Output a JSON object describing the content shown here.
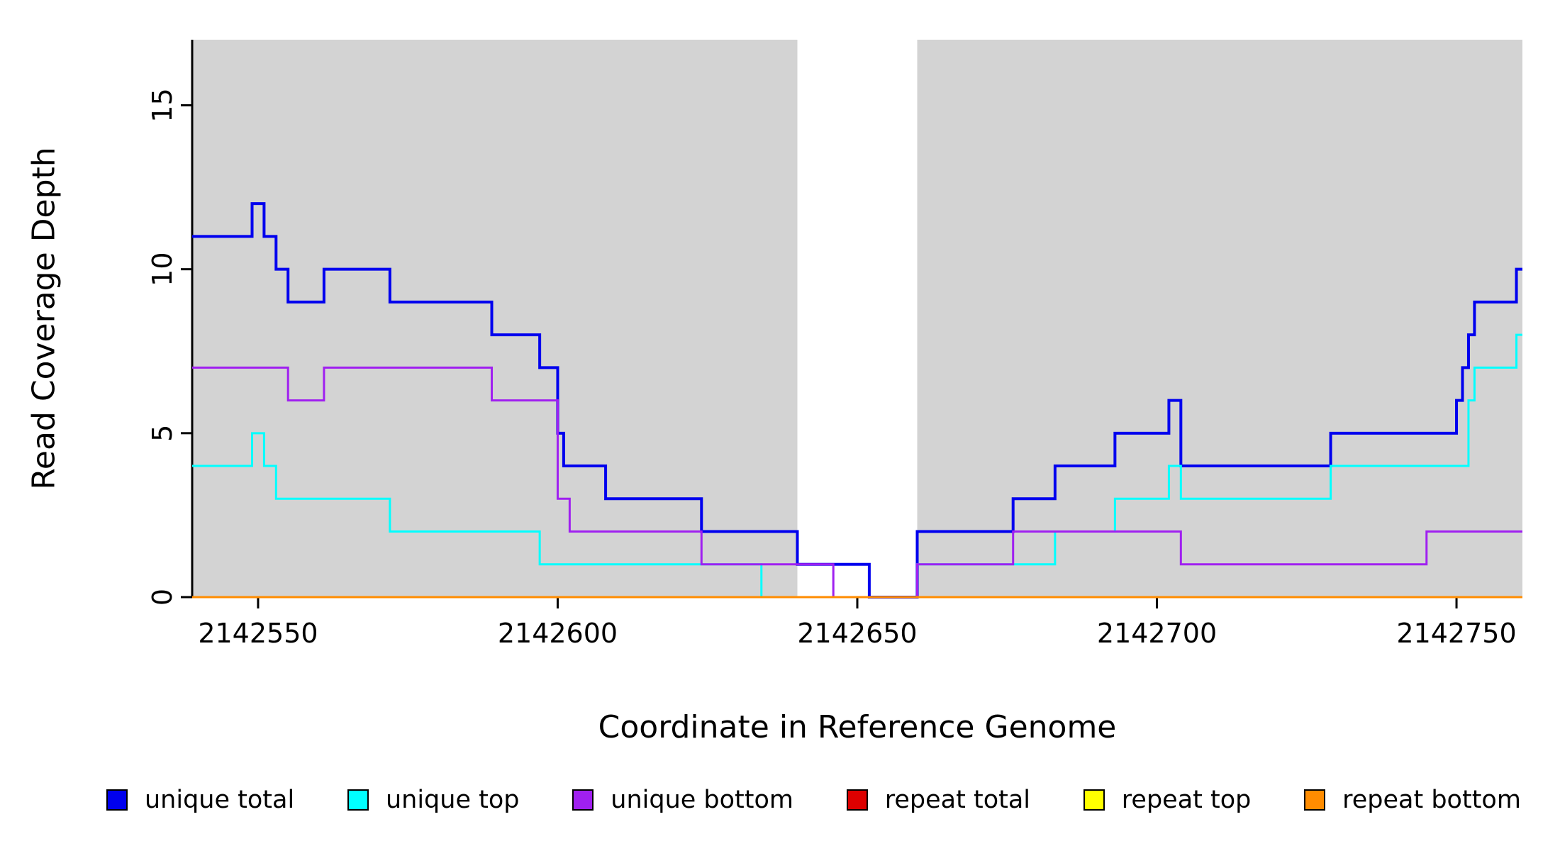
{
  "chart_data": {
    "type": "line",
    "subtype": "step",
    "title": "",
    "xlabel": "Coordinate in Reference Genome",
    "ylabel": "Read Coverage Depth",
    "xlim": [
      2142539,
      2142761
    ],
    "ylim": [
      0,
      17
    ],
    "xticks": [
      2142550,
      2142600,
      2142650,
      2142700,
      2142750
    ],
    "yticks": [
      0,
      5,
      10,
      15
    ],
    "grid": false,
    "legend_position": "bottom",
    "plot_background": "#ffffff",
    "shaded_region_color": "#d3d3d3",
    "shaded_regions": [
      {
        "x0": 2142539,
        "x1": 2142640
      },
      {
        "x0": 2142660,
        "x1": 2142761
      }
    ],
    "series": [
      {
        "name": "unique total",
        "color": "#0000EE",
        "width": 4,
        "points": [
          [
            2142539,
            11
          ],
          [
            2142549,
            12
          ],
          [
            2142551,
            11
          ],
          [
            2142553,
            10
          ],
          [
            2142555,
            9
          ],
          [
            2142561,
            10
          ],
          [
            2142572,
            9
          ],
          [
            2142589,
            8
          ],
          [
            2142597,
            7
          ],
          [
            2142600,
            5
          ],
          [
            2142601,
            4
          ],
          [
            2142608,
            3
          ],
          [
            2142624,
            2
          ],
          [
            2142640,
            1
          ],
          [
            2142652,
            0
          ],
          [
            2142660,
            2
          ],
          [
            2142676,
            3
          ],
          [
            2142683,
            4
          ],
          [
            2142693,
            5
          ],
          [
            2142702,
            6
          ],
          [
            2142704,
            4
          ],
          [
            2142729,
            5
          ],
          [
            2142750,
            6
          ],
          [
            2142751,
            7
          ],
          [
            2142752,
            8
          ],
          [
            2142753,
            9
          ],
          [
            2142760,
            10
          ],
          [
            2142761,
            10
          ]
        ]
      },
      {
        "name": "unique top",
        "color": "#00FFFF",
        "width": 3,
        "points": [
          [
            2142539,
            4
          ],
          [
            2142549,
            5
          ],
          [
            2142551,
            4
          ],
          [
            2142553,
            3
          ],
          [
            2142572,
            2
          ],
          [
            2142597,
            1
          ],
          [
            2142634,
            0
          ],
          [
            2142660,
            1
          ],
          [
            2142683,
            2
          ],
          [
            2142693,
            3
          ],
          [
            2142702,
            4
          ],
          [
            2142704,
            3
          ],
          [
            2142729,
            4
          ],
          [
            2142752,
            6
          ],
          [
            2142753,
            7
          ],
          [
            2142760,
            8
          ],
          [
            2142761,
            8
          ]
        ]
      },
      {
        "name": "unique bottom",
        "color": "#A020F0",
        "width": 3,
        "points": [
          [
            2142539,
            7
          ],
          [
            2142555,
            6
          ],
          [
            2142561,
            7
          ],
          [
            2142589,
            6
          ],
          [
            2142600,
            3
          ],
          [
            2142602,
            2
          ],
          [
            2142624,
            1
          ],
          [
            2142646,
            0
          ],
          [
            2142660,
            1
          ],
          [
            2142676,
            2
          ],
          [
            2142704,
            1
          ],
          [
            2142745,
            2
          ],
          [
            2142761,
            2
          ]
        ]
      },
      {
        "name": "repeat total",
        "color": "#DD0000",
        "width": 3,
        "points": [
          [
            2142539,
            0
          ],
          [
            2142761,
            0
          ]
        ]
      },
      {
        "name": "repeat top",
        "color": "#FFFF00",
        "width": 3,
        "points": [
          [
            2142539,
            0
          ],
          [
            2142761,
            0
          ]
        ]
      },
      {
        "name": "repeat bottom",
        "color": "#FF8C00",
        "width": 3,
        "points": [
          [
            2142539,
            0
          ],
          [
            2142761,
            0
          ]
        ]
      }
    ]
  }
}
